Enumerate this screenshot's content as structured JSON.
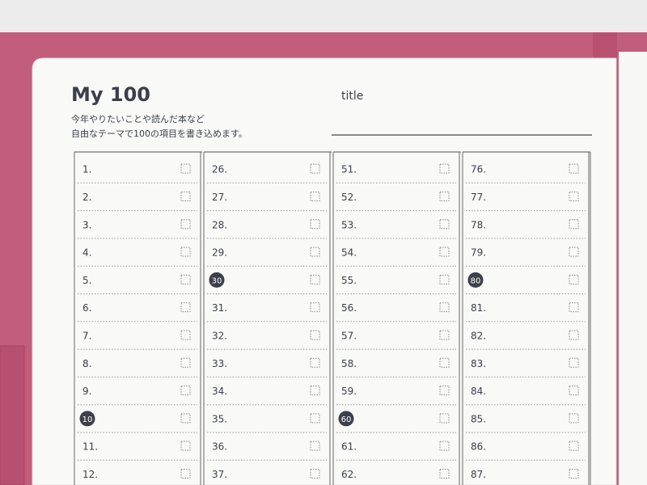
{
  "header": {
    "title": "My 100",
    "field_label": "title",
    "description": [
      "今年やりたいことや読んだ本など",
      "自由なテーマで100の項目を書き込めます。"
    ]
  },
  "columns": [
    [
      {
        "label": "1."
      },
      {
        "label": "2."
      },
      {
        "label": "3."
      },
      {
        "label": "4."
      },
      {
        "label": "5."
      },
      {
        "label": "6."
      },
      {
        "label": "7."
      },
      {
        "label": "8."
      },
      {
        "label": "9."
      },
      {
        "label": "10",
        "circled": true
      },
      {
        "label": "11."
      },
      {
        "label": "12."
      }
    ],
    [
      {
        "label": "26."
      },
      {
        "label": "27."
      },
      {
        "label": "28."
      },
      {
        "label": "29."
      },
      {
        "label": "30",
        "circled": true
      },
      {
        "label": "31."
      },
      {
        "label": "32."
      },
      {
        "label": "33."
      },
      {
        "label": "34."
      },
      {
        "label": "35."
      },
      {
        "label": "36."
      },
      {
        "label": "37."
      }
    ],
    [
      {
        "label": "51."
      },
      {
        "label": "52."
      },
      {
        "label": "53."
      },
      {
        "label": "54."
      },
      {
        "label": "55."
      },
      {
        "label": "56."
      },
      {
        "label": "57."
      },
      {
        "label": "58."
      },
      {
        "label": "59."
      },
      {
        "label": "60",
        "circled": true
      },
      {
        "label": "61."
      },
      {
        "label": "62."
      }
    ],
    [
      {
        "label": "76."
      },
      {
        "label": "77."
      },
      {
        "label": "78."
      },
      {
        "label": "79."
      },
      {
        "label": "80",
        "circled": true
      },
      {
        "label": "81."
      },
      {
        "label": "82."
      },
      {
        "label": "83."
      },
      {
        "label": "84."
      },
      {
        "label": "85."
      },
      {
        "label": "86."
      },
      {
        "label": "87."
      }
    ]
  ]
}
